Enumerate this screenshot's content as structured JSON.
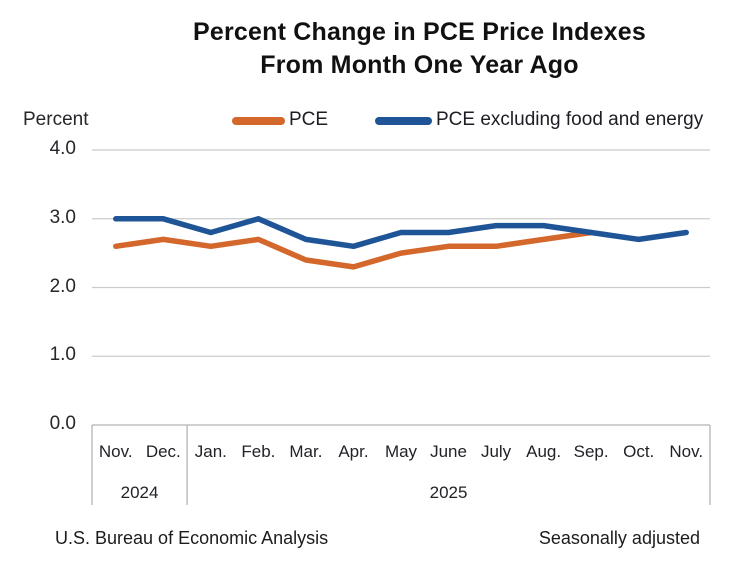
{
  "header": {
    "title_line1": "Percent Change in PCE Price Indexes",
    "title_line2": "From Month One Year Ago"
  },
  "axis_unit_label": "Percent",
  "legend": [
    {
      "label": "PCE",
      "color": "#D4672B"
    },
    {
      "label": "PCE excluding food and energy",
      "color": "#1F5596"
    }
  ],
  "footer": {
    "left": "U.S. Bureau of Economic Analysis",
    "right": "Seasonally adjusted"
  },
  "chart_data": {
    "type": "line",
    "title": "Percent Change in PCE Price Indexes From Month One Year Ago",
    "ylabel": "Percent",
    "xlabel": "",
    "ylim": [
      0,
      4
    ],
    "grid": "horizontal-gridlines",
    "legend_position": "top",
    "categories": [
      "Nov.",
      "Dec.",
      "Jan.",
      "Feb.",
      "Mar.",
      "Apr.",
      "May",
      "June",
      "July",
      "Aug.",
      "Sep.",
      "Oct.",
      "Nov."
    ],
    "year_groups": [
      {
        "label": "2024",
        "from": 0,
        "to": 1
      },
      {
        "label": "2025",
        "from": 2,
        "to": 12
      }
    ],
    "yticks": [
      {
        "value": 4,
        "label": "4.0"
      },
      {
        "value": 3,
        "label": "3.0"
      },
      {
        "value": 2,
        "label": "2.0"
      },
      {
        "value": 1,
        "label": "1.0"
      },
      {
        "value": 0,
        "label": "0.0"
      }
    ],
    "series": [
      {
        "name": "PCE",
        "color": "#D4672B",
        "values": [
          2.6,
          2.7,
          2.6,
          2.7,
          2.4,
          2.3,
          2.5,
          2.6,
          2.6,
          2.7,
          2.8,
          null,
          null
        ]
      },
      {
        "name": "PCE excluding food and energy",
        "color": "#1F5596",
        "values": [
          3.0,
          3.0,
          2.8,
          3.0,
          2.7,
          2.6,
          2.8,
          2.8,
          2.9,
          2.9,
          2.8,
          2.7,
          2.8
        ]
      }
    ],
    "colors": {
      "gridline": "#CBCBCB",
      "axis_box": "#B5B5B5"
    }
  }
}
